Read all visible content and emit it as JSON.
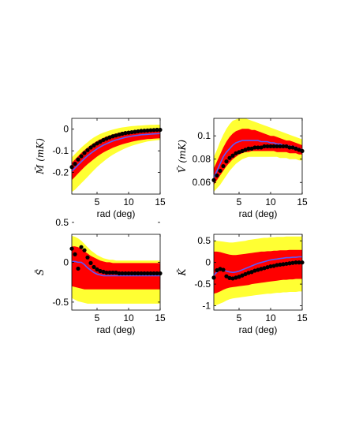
{
  "colors": {
    "outer_band": "#ffff33",
    "inner_band": "#ff0000",
    "model_line": "#5a5aff",
    "data_points": "#000000"
  },
  "chart_data": [
    {
      "type": "line",
      "ylabel": "M̄ (mK)",
      "xlabel": "rad (deg)",
      "xlim": [
        1,
        15
      ],
      "ylim": [
        -0.3,
        0.05
      ],
      "xticks": [
        "5",
        "10",
        "15"
      ],
      "yticks": [
        "0",
        "-0.1",
        "-0.2"
      ],
      "x": [
        1,
        1.5,
        2,
        2.5,
        3,
        3.5,
        4,
        4.5,
        5,
        5.5,
        6,
        6.5,
        7,
        7.5,
        8,
        8.5,
        9,
        9.5,
        10,
        10.5,
        11,
        11.5,
        12,
        12.5,
        13,
        13.5,
        14,
        14.5,
        15
      ],
      "outer_upper": [
        -0.13,
        -0.115,
        -0.1,
        -0.085,
        -0.072,
        -0.06,
        -0.048,
        -0.038,
        -0.03,
        -0.022,
        -0.016,
        -0.011,
        -0.006,
        -0.002,
        0.002,
        0.005,
        0.008,
        0.01,
        0.012,
        0.014,
        0.015,
        0.016,
        0.017,
        0.018,
        0.019,
        0.02,
        0.02,
        0.021,
        0.021
      ],
      "outer_lower": [
        -0.29,
        -0.28,
        -0.265,
        -0.25,
        -0.235,
        -0.22,
        -0.205,
        -0.19,
        -0.175,
        -0.162,
        -0.15,
        -0.138,
        -0.128,
        -0.118,
        -0.11,
        -0.102,
        -0.095,
        -0.088,
        -0.082,
        -0.077,
        -0.072,
        -0.068,
        -0.064,
        -0.06,
        -0.057,
        -0.055,
        -0.053,
        -0.051,
        -0.05
      ],
      "inner_upper": [
        -0.155,
        -0.14,
        -0.125,
        -0.11,
        -0.097,
        -0.085,
        -0.074,
        -0.064,
        -0.055,
        -0.047,
        -0.04,
        -0.034,
        -0.029,
        -0.024,
        -0.02,
        -0.016,
        -0.013,
        -0.011,
        -0.009,
        -0.007,
        -0.005,
        -0.004,
        -0.003,
        -0.002,
        -0.001,
        0,
        0,
        0.001,
        0.001
      ],
      "inner_lower": [
        -0.235,
        -0.22,
        -0.205,
        -0.19,
        -0.175,
        -0.162,
        -0.15,
        -0.138,
        -0.127,
        -0.117,
        -0.108,
        -0.1,
        -0.093,
        -0.086,
        -0.08,
        -0.075,
        -0.07,
        -0.066,
        -0.062,
        -0.058,
        -0.055,
        -0.052,
        -0.05,
        -0.048,
        -0.046,
        -0.045,
        -0.044,
        -0.043,
        -0.042
      ],
      "model": [
        -0.195,
        -0.18,
        -0.165,
        -0.15,
        -0.136,
        -0.123,
        -0.112,
        -0.101,
        -0.091,
        -0.082,
        -0.074,
        -0.067,
        -0.061,
        -0.055,
        -0.05,
        -0.046,
        -0.042,
        -0.038,
        -0.035,
        -0.032,
        -0.03,
        -0.028,
        -0.026,
        -0.025,
        -0.024,
        -0.023,
        -0.022,
        -0.021,
        -0.02
      ],
      "points_x": [
        1,
        1.5,
        2,
        2.5,
        3,
        3.5,
        4,
        4.5,
        5,
        5.5,
        6,
        6.5,
        7,
        7.5,
        8,
        8.5,
        9,
        9.5,
        10,
        10.5,
        11,
        11.5,
        12,
        12.5,
        13,
        13.5,
        14,
        14.5,
        15
      ],
      "points_y": [
        -0.175,
        -0.16,
        -0.14,
        -0.125,
        -0.11,
        -0.097,
        -0.085,
        -0.075,
        -0.066,
        -0.058,
        -0.05,
        -0.044,
        -0.038,
        -0.033,
        -0.029,
        -0.025,
        -0.021,
        -0.018,
        -0.016,
        -0.014,
        -0.012,
        -0.01,
        -0.008,
        -0.007,
        -0.006,
        -0.005,
        -0.004,
        -0.003,
        -0.003
      ]
    },
    {
      "type": "line",
      "ylabel": "V̄ (mK)",
      "xlabel": "rad (deg)",
      "xlim": [
        1,
        15
      ],
      "ylim": [
        0.05,
        0.115
      ],
      "xticks": [
        "5",
        "10",
        "15"
      ],
      "yticks": [
        "0.1",
        "0.08",
        "0.06"
      ],
      "x": [
        1,
        1.5,
        2,
        2.5,
        3,
        3.5,
        4,
        4.5,
        5,
        5.5,
        6,
        6.5,
        7,
        7.5,
        8,
        8.5,
        9,
        9.5,
        10,
        10.5,
        11,
        11.5,
        12,
        12.5,
        13,
        13.5,
        14,
        14.5,
        15
      ],
      "outer_upper": [
        0.082,
        0.088,
        0.095,
        0.101,
        0.106,
        0.11,
        0.113,
        0.114,
        0.115,
        0.115,
        0.115,
        0.114,
        0.113,
        0.112,
        0.111,
        0.11,
        0.109,
        0.108,
        0.107,
        0.106,
        0.105,
        0.104,
        0.103,
        0.102,
        0.101,
        0.1,
        0.099,
        0.098,
        0.097
      ],
      "outer_lower": [
        0.052,
        0.055,
        0.058,
        0.062,
        0.066,
        0.07,
        0.073,
        0.076,
        0.078,
        0.08,
        0.081,
        0.082,
        0.082,
        0.082,
        0.082,
        0.082,
        0.082,
        0.082,
        0.082,
        0.082,
        0.082,
        0.081,
        0.081,
        0.081,
        0.08,
        0.08,
        0.08,
        0.079,
        0.079
      ],
      "inner_upper": [
        0.072,
        0.078,
        0.084,
        0.09,
        0.095,
        0.099,
        0.102,
        0.104,
        0.105,
        0.106,
        0.106,
        0.106,
        0.105,
        0.105,
        0.104,
        0.103,
        0.102,
        0.101,
        0.1,
        0.1,
        0.099,
        0.098,
        0.097,
        0.096,
        0.096,
        0.095,
        0.094,
        0.093,
        0.092
      ],
      "inner_lower": [
        0.058,
        0.062,
        0.066,
        0.07,
        0.074,
        0.077,
        0.08,
        0.082,
        0.084,
        0.085,
        0.086,
        0.086,
        0.087,
        0.087,
        0.087,
        0.087,
        0.087,
        0.087,
        0.087,
        0.087,
        0.086,
        0.086,
        0.086,
        0.086,
        0.085,
        0.085,
        0.085,
        0.084,
        0.084
      ],
      "model": [
        0.064,
        0.07,
        0.076,
        0.082,
        0.086,
        0.089,
        0.092,
        0.094,
        0.095,
        0.096,
        0.096,
        0.096,
        0.096,
        0.096,
        0.096,
        0.095,
        0.095,
        0.095,
        0.094,
        0.094,
        0.093,
        0.093,
        0.092,
        0.092,
        0.091,
        0.091,
        0.09,
        0.089,
        0.088
      ],
      "points_x": [
        1,
        1.5,
        2,
        2.5,
        3,
        3.5,
        4,
        4.5,
        5,
        5.5,
        6,
        6.5,
        7,
        7.5,
        8,
        8.5,
        9,
        9.5,
        10,
        10.5,
        11,
        11.5,
        12,
        12.5,
        13,
        13.5,
        14,
        14.5,
        15
      ],
      "points_y": [
        0.062,
        0.066,
        0.07,
        0.074,
        0.078,
        0.081,
        0.083,
        0.085,
        0.086,
        0.087,
        0.088,
        0.089,
        0.089,
        0.09,
        0.09,
        0.09,
        0.091,
        0.091,
        0.091,
        0.091,
        0.091,
        0.091,
        0.091,
        0.091,
        0.09,
        0.09,
        0.089,
        0.088,
        0.087
      ]
    },
    {
      "type": "line",
      "ylabel": "S̄",
      "xlabel": "rad (deg)",
      "xlim": [
        1,
        15
      ],
      "ylim": [
        -0.6,
        0.35
      ],
      "xticks": [
        "5",
        "10",
        "15"
      ],
      "yticks": [
        "0.5",
        "0",
        "-0.5"
      ],
      "x": [
        1,
        1.5,
        2,
        2.5,
        3,
        3.5,
        4,
        4.5,
        5,
        5.5,
        6,
        6.5,
        7,
        7.5,
        8,
        8.5,
        9,
        9.5,
        10,
        10.5,
        11,
        11.5,
        12,
        12.5,
        13,
        13.5,
        14,
        14.5,
        15
      ],
      "outer_upper": [
        0.33,
        0.32,
        0.3,
        0.27,
        0.23,
        0.19,
        0.15,
        0.12,
        0.09,
        0.07,
        0.05,
        0.04,
        0.03,
        0.03,
        0.02,
        0.02,
        0.02,
        0.02,
        0.02,
        0.02,
        0.02,
        0.02,
        0.02,
        0.02,
        0.02,
        0.02,
        0.02,
        0.02,
        0.02
      ],
      "outer_lower": [
        -0.45,
        -0.47,
        -0.49,
        -0.5,
        -0.51,
        -0.52,
        -0.52,
        -0.52,
        -0.52,
        -0.52,
        -0.52,
        -0.52,
        -0.52,
        -0.52,
        -0.52,
        -0.52,
        -0.52,
        -0.52,
        -0.52,
        -0.52,
        -0.52,
        -0.52,
        -0.52,
        -0.52,
        -0.52,
        -0.52,
        -0.52,
        -0.52,
        -0.52
      ],
      "inner_upper": [
        0.2,
        0.2,
        0.19,
        0.17,
        0.14,
        0.11,
        0.08,
        0.06,
        0.04,
        0.02,
        0.01,
        0,
        0,
        -0.01,
        -0.01,
        -0.01,
        -0.01,
        -0.01,
        -0.01,
        -0.01,
        -0.01,
        -0.01,
        -0.01,
        -0.01,
        -0.01,
        -0.01,
        -0.01,
        -0.01,
        -0.01
      ],
      "inner_lower": [
        -0.3,
        -0.31,
        -0.32,
        -0.33,
        -0.34,
        -0.34,
        -0.34,
        -0.34,
        -0.34,
        -0.34,
        -0.34,
        -0.34,
        -0.34,
        -0.34,
        -0.34,
        -0.34,
        -0.34,
        -0.34,
        -0.34,
        -0.34,
        -0.34,
        -0.34,
        -0.34,
        -0.34,
        -0.34,
        -0.34,
        -0.34,
        -0.34,
        -0.34
      ],
      "model": [
        0.01,
        0.01,
        0,
        0,
        -0.03,
        -0.07,
        -0.1,
        -0.13,
        -0.15,
        -0.16,
        -0.17,
        -0.17,
        -0.17,
        -0.17,
        -0.17,
        -0.17,
        -0.17,
        -0.17,
        -0.17,
        -0.17,
        -0.17,
        -0.17,
        -0.17,
        -0.17,
        -0.17,
        -0.17,
        -0.17,
        -0.17,
        -0.17
      ],
      "points_x": [
        1,
        1.5,
        2,
        2.5,
        3,
        3.5,
        4,
        4.5,
        5,
        5.5,
        6,
        6.5,
        7,
        7.5,
        8,
        8.5,
        9,
        9.5,
        10,
        10.5,
        11,
        11.5,
        12,
        12.5,
        13,
        13.5,
        14,
        14.5,
        15
      ],
      "points_y": [
        0.17,
        0.1,
        -0.08,
        0.19,
        0.15,
        0.06,
        -0.01,
        -0.06,
        -0.09,
        -0.11,
        -0.12,
        -0.13,
        -0.13,
        -0.13,
        -0.13,
        -0.14,
        -0.14,
        -0.14,
        -0.14,
        -0.14,
        -0.14,
        -0.14,
        -0.14,
        -0.14,
        -0.14,
        -0.14,
        -0.14,
        -0.14,
        -0.14
      ]
    },
    {
      "type": "line",
      "ylabel": "K̄",
      "xlabel": "rad (deg)",
      "xlim": [
        1,
        15
      ],
      "ylim": [
        -1.1,
        0.65
      ],
      "xticks": [
        "5",
        "10",
        "15"
      ],
      "yticks": [
        "0.5",
        "0",
        "-0.5",
        "-1"
      ],
      "x": [
        1,
        1.5,
        2,
        2.5,
        3,
        3.5,
        4,
        4.5,
        5,
        5.5,
        6,
        6.5,
        7,
        7.5,
        8,
        8.5,
        9,
        9.5,
        10,
        10.5,
        11,
        11.5,
        12,
        12.5,
        13,
        13.5,
        14,
        14.5,
        15
      ],
      "outer_upper": [
        0.5,
        0.5,
        0.49,
        0.48,
        0.47,
        0.46,
        0.46,
        0.47,
        0.48,
        0.49,
        0.5,
        0.52,
        0.53,
        0.54,
        0.55,
        0.56,
        0.57,
        0.57,
        0.58,
        0.58,
        0.59,
        0.59,
        0.59,
        0.6,
        0.6,
        0.6,
        0.6,
        0.6,
        0.6
      ],
      "outer_lower": [
        -1,
        -0.98,
        -0.95,
        -0.92,
        -0.88,
        -0.85,
        -0.83,
        -0.82,
        -0.81,
        -0.8,
        -0.79,
        -0.78,
        -0.77,
        -0.76,
        -0.75,
        -0.74,
        -0.73,
        -0.72,
        -0.72,
        -0.71,
        -0.7,
        -0.7,
        -0.69,
        -0.69,
        -0.68,
        -0.68,
        -0.68,
        -0.67,
        -0.67
      ],
      "inner_upper": [
        0.25,
        0.25,
        0.24,
        0.22,
        0.2,
        0.18,
        0.17,
        0.17,
        0.18,
        0.19,
        0.2,
        0.21,
        0.22,
        0.23,
        0.24,
        0.25,
        0.25,
        0.26,
        0.26,
        0.27,
        0.27,
        0.28,
        0.28,
        0.28,
        0.29,
        0.29,
        0.29,
        0.29,
        0.29
      ],
      "inner_lower": [
        -0.72,
        -0.7,
        -0.67,
        -0.63,
        -0.6,
        -0.58,
        -0.57,
        -0.56,
        -0.55,
        -0.54,
        -0.53,
        -0.52,
        -0.5,
        -0.49,
        -0.48,
        -0.47,
        -0.46,
        -0.45,
        -0.44,
        -0.43,
        -0.42,
        -0.41,
        -0.4,
        -0.4,
        -0.39,
        -0.39,
        -0.38,
        -0.38,
        -0.38
      ],
      "model": [
        -0.3,
        -0.22,
        -0.17,
        -0.17,
        -0.2,
        -0.22,
        -0.23,
        -0.22,
        -0.2,
        -0.17,
        -0.14,
        -0.11,
        -0.08,
        -0.05,
        -0.02,
        0,
        0.02,
        0.04,
        0.06,
        0.07,
        0.08,
        0.09,
        0.1,
        0.11,
        0.11,
        0.12,
        0.12,
        0.13,
        0.13
      ],
      "points_x": [
        1,
        1.5,
        2,
        2.5,
        3,
        3.5,
        4,
        4.5,
        5,
        5.5,
        6,
        6.5,
        7,
        7.5,
        8,
        8.5,
        9,
        9.5,
        10,
        10.5,
        11,
        11.5,
        12,
        12.5,
        13,
        13.5,
        14,
        14.5,
        15
      ],
      "points_y": [
        -0.35,
        -0.18,
        -0.15,
        -0.17,
        -0.32,
        -0.36,
        -0.37,
        -0.35,
        -0.33,
        -0.3,
        -0.27,
        -0.24,
        -0.22,
        -0.19,
        -0.17,
        -0.15,
        -0.13,
        -0.11,
        -0.09,
        -0.08,
        -0.06,
        -0.05,
        -0.04,
        -0.03,
        -0.02,
        -0.01,
        0,
        0,
        0
      ]
    }
  ]
}
